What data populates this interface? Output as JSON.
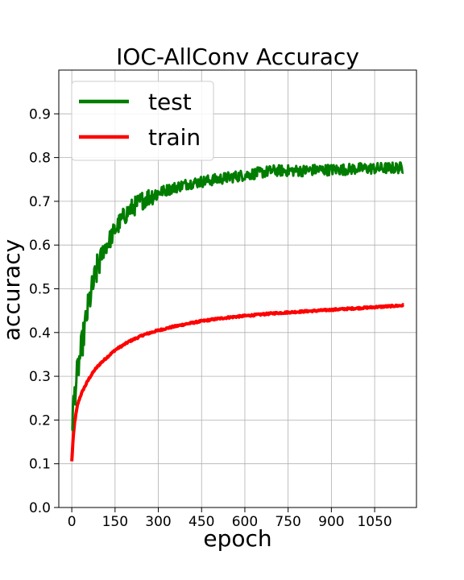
{
  "chart_data": {
    "type": "line",
    "title": "IOC-AllConv Accuracy",
    "xlabel": "epoch",
    "ylabel": "accuracy",
    "xlim": [
      -45,
      1195
    ],
    "ylim": [
      0.0,
      1.0
    ],
    "xticks": [
      0,
      150,
      300,
      450,
      600,
      750,
      900,
      1050
    ],
    "yticks": [
      0.0,
      0.1,
      0.2,
      0.3,
      0.4,
      0.5,
      0.6,
      0.7,
      0.8,
      0.9
    ],
    "grid": true,
    "legend_position": "top-left",
    "series": [
      {
        "name": "test",
        "color": "#007d00",
        "noise": "high",
        "x": [
          0,
          10,
          20,
          30,
          40,
          50,
          60,
          75,
          90,
          110,
          130,
          150,
          175,
          200,
          250,
          300,
          350,
          400,
          450,
          500,
          550,
          600,
          650,
          700,
          750,
          800,
          850,
          900,
          950,
          1000,
          1050,
          1100,
          1150
        ],
        "y": [
          0.19,
          0.26,
          0.31,
          0.35,
          0.39,
          0.43,
          0.47,
          0.51,
          0.55,
          0.59,
          0.61,
          0.635,
          0.66,
          0.68,
          0.705,
          0.72,
          0.73,
          0.74,
          0.745,
          0.75,
          0.755,
          0.76,
          0.765,
          0.77,
          0.77,
          0.77,
          0.772,
          0.772,
          0.773,
          0.775,
          0.775,
          0.776,
          0.777
        ]
      },
      {
        "name": "train",
        "color": "#ff0000",
        "noise": "low",
        "x": [
          0,
          5,
          10,
          20,
          30,
          40,
          60,
          80,
          100,
          150,
          200,
          250,
          300,
          350,
          400,
          450,
          500,
          550,
          600,
          650,
          700,
          750,
          800,
          850,
          900,
          950,
          1000,
          1050,
          1100,
          1150
        ],
        "y": [
          0.105,
          0.16,
          0.195,
          0.235,
          0.255,
          0.27,
          0.295,
          0.315,
          0.33,
          0.36,
          0.38,
          0.395,
          0.405,
          0.413,
          0.42,
          0.426,
          0.431,
          0.435,
          0.438,
          0.441,
          0.444,
          0.446,
          0.448,
          0.45,
          0.452,
          0.454,
          0.456,
          0.458,
          0.46,
          0.462
        ]
      }
    ]
  }
}
